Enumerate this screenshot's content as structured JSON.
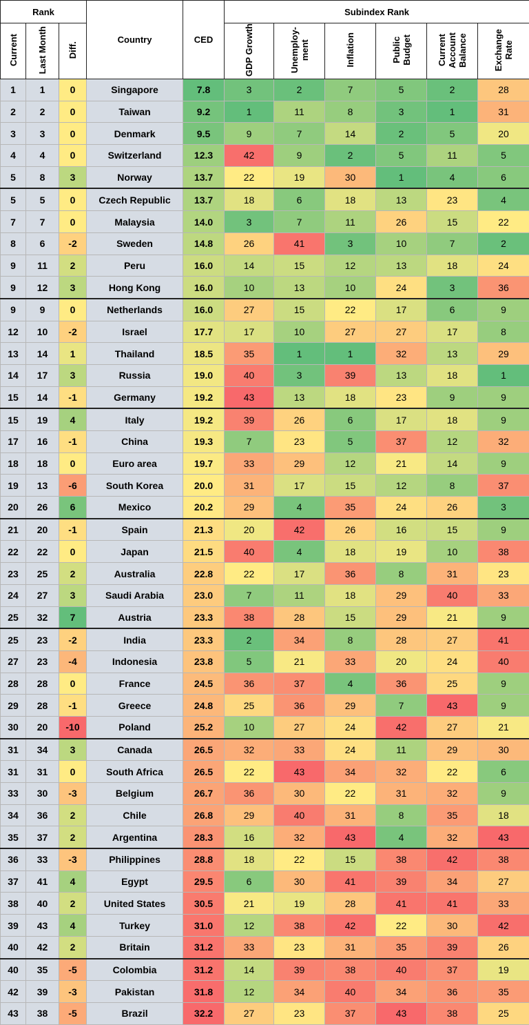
{
  "header": {
    "rank": "Rank",
    "subindex": "Subindex Rank",
    "columns": [
      "Current",
      "Last Month",
      "Diff.",
      "Country",
      "CED",
      "GDP Growth",
      "Unemploy-\nment",
      "Inflation",
      "Public\nBudget",
      "Current\nAccount\nBalance",
      "Exchange\nRate"
    ]
  },
  "table": {
    "rows": [
      [
        1,
        1,
        0,
        "Singapore",
        "7.8",
        3,
        2,
        7,
        5,
        2,
        28
      ],
      [
        2,
        2,
        0,
        "Taiwan",
        "9.2",
        1,
        11,
        8,
        3,
        1,
        31
      ],
      [
        3,
        3,
        0,
        "Denmark",
        "9.5",
        9,
        7,
        14,
        2,
        5,
        20
      ],
      [
        4,
        4,
        0,
        "Switzerland",
        "12.3",
        42,
        9,
        2,
        5,
        11,
        5
      ],
      [
        5,
        8,
        3,
        "Norway",
        "13.7",
        22,
        19,
        30,
        1,
        4,
        6
      ],
      [
        5,
        5,
        0,
        "Czech Republic",
        "13.7",
        18,
        6,
        18,
        13,
        23,
        4
      ],
      [
        7,
        7,
        0,
        "Malaysia",
        "14.0",
        3,
        7,
        11,
        26,
        15,
        22
      ],
      [
        8,
        6,
        -2,
        "Sweden",
        "14.8",
        26,
        41,
        3,
        10,
        7,
        2
      ],
      [
        9,
        11,
        2,
        "Peru",
        "16.0",
        14,
        15,
        12,
        13,
        18,
        24
      ],
      [
        9,
        12,
        3,
        "Hong Kong",
        "16.0",
        10,
        13,
        10,
        24,
        3,
        36
      ],
      [
        9,
        9,
        0,
        "Netherlands",
        "16.0",
        27,
        15,
        22,
        17,
        6,
        9
      ],
      [
        12,
        10,
        -2,
        "Israel",
        "17.7",
        17,
        10,
        27,
        27,
        17,
        8
      ],
      [
        13,
        14,
        1,
        "Thailand",
        "18.5",
        35,
        1,
        1,
        32,
        13,
        29
      ],
      [
        14,
        17,
        3,
        "Russia",
        "19.0",
        40,
        3,
        39,
        13,
        18,
        1
      ],
      [
        15,
        14,
        -1,
        "Germany",
        "19.2",
        43,
        13,
        18,
        23,
        9,
        9
      ],
      [
        15,
        19,
        4,
        "Italy",
        "19.2",
        39,
        26,
        6,
        17,
        18,
        9
      ],
      [
        17,
        16,
        -1,
        "China",
        "19.3",
        7,
        23,
        5,
        37,
        12,
        32
      ],
      [
        18,
        18,
        0,
        "Euro area",
        "19.7",
        33,
        29,
        12,
        21,
        14,
        9
      ],
      [
        19,
        13,
        -6,
        "South Korea",
        "20.0",
        31,
        17,
        15,
        12,
        8,
        37
      ],
      [
        20,
        26,
        6,
        "Mexico",
        "20.2",
        29,
        4,
        35,
        24,
        26,
        3
      ],
      [
        21,
        20,
        -1,
        "Spain",
        "21.3",
        20,
        42,
        26,
        16,
        15,
        9
      ],
      [
        22,
        22,
        0,
        "Japan",
        "21.5",
        40,
        4,
        18,
        19,
        10,
        38
      ],
      [
        23,
        25,
        2,
        "Australia",
        "22.8",
        22,
        17,
        36,
        8,
        31,
        23
      ],
      [
        24,
        27,
        3,
        "Saudi Arabia",
        "23.0",
        7,
        11,
        18,
        29,
        40,
        33
      ],
      [
        25,
        32,
        7,
        "Austria",
        "23.3",
        38,
        28,
        15,
        29,
        21,
        9
      ],
      [
        25,
        23,
        -2,
        "India",
        "23.3",
        2,
        34,
        8,
        28,
        27,
        41
      ],
      [
        27,
        23,
        -4,
        "Indonesia",
        "23.8",
        5,
        21,
        33,
        20,
        24,
        40
      ],
      [
        28,
        28,
        0,
        "France",
        "24.5",
        36,
        37,
        4,
        36,
        25,
        9
      ],
      [
        29,
        28,
        -1,
        "Greece",
        "24.8",
        25,
        36,
        29,
        7,
        43,
        9
      ],
      [
        30,
        20,
        -10,
        "Poland",
        "25.2",
        10,
        27,
        24,
        42,
        27,
        21
      ],
      [
        31,
        34,
        3,
        "Canada",
        "26.5",
        32,
        33,
        24,
        11,
        29,
        30
      ],
      [
        31,
        31,
        0,
        "South Africa",
        "26.5",
        22,
        43,
        34,
        32,
        22,
        6
      ],
      [
        33,
        30,
        -3,
        "Belgium",
        "26.7",
        36,
        30,
        22,
        31,
        32,
        9
      ],
      [
        34,
        36,
        2,
        "Chile",
        "26.8",
        29,
        40,
        31,
        8,
        35,
        18
      ],
      [
        35,
        37,
        2,
        "Argentina",
        "28.3",
        16,
        32,
        43,
        4,
        32,
        43
      ],
      [
        36,
        33,
        -3,
        "Philippines",
        "28.8",
        18,
        22,
        15,
        38,
        42,
        38
      ],
      [
        37,
        41,
        4,
        "Egypt",
        "29.5",
        6,
        30,
        41,
        39,
        34,
        27
      ],
      [
        38,
        40,
        2,
        "United States",
        "30.5",
        21,
        19,
        28,
        41,
        41,
        33
      ],
      [
        39,
        43,
        4,
        "Turkey",
        "31.0",
        12,
        38,
        42,
        22,
        30,
        42
      ],
      [
        40,
        42,
        2,
        "Britain",
        "31.2",
        33,
        23,
        31,
        35,
        39,
        26
      ],
      [
        40,
        35,
        -5,
        "Colombia",
        "31.2",
        14,
        39,
        38,
        40,
        37,
        19
      ],
      [
        42,
        39,
        -3,
        "Pakistan",
        "31.8",
        12,
        34,
        40,
        34,
        36,
        35
      ],
      [
        43,
        38,
        -5,
        "Brazil",
        "32.2",
        27,
        23,
        37,
        43,
        38,
        25
      ]
    ]
  }
}
